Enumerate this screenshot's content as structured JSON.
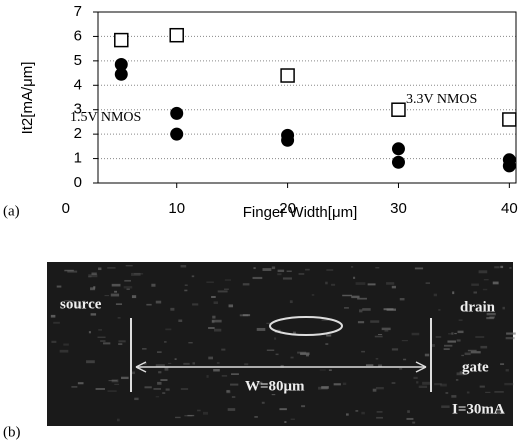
{
  "chart_data": {
    "type": "scatter",
    "ylabel": "It2[mA/μm]",
    "xlabel": "Finger Width[μm]",
    "x": [
      5,
      10,
      20,
      30,
      40
    ],
    "series": [
      {
        "marker": "square",
        "color": "#000000",
        "values": [
          5.85,
          6.05,
          4.4,
          3.0,
          2.6
        ]
      },
      {
        "marker": "circle",
        "color": "#000000",
        "values": [
          4.85,
          2.85,
          1.95,
          1.4,
          0.95
        ]
      },
      {
        "marker": "circle",
        "color": "#000000",
        "values": [
          4.45,
          2.0,
          1.75,
          0.85,
          0.7
        ]
      }
    ],
    "annotations": [
      "1.5V NMOS",
      "3.3V NMOS"
    ],
    "xlim": [
      2.9,
      40.6
    ],
    "xticks": [
      0,
      10,
      20,
      30,
      40
    ],
    "ylim": [
      0,
      7
    ],
    "yticks": [
      0,
      1,
      2,
      3,
      4,
      5,
      6,
      7
    ],
    "grid": true
  },
  "panel_labels": [
    "(a)",
    "(b)"
  ],
  "photo": {
    "labels": [
      "source",
      "drain",
      "gate",
      "W=80μm",
      "I=30mA"
    ]
  }
}
